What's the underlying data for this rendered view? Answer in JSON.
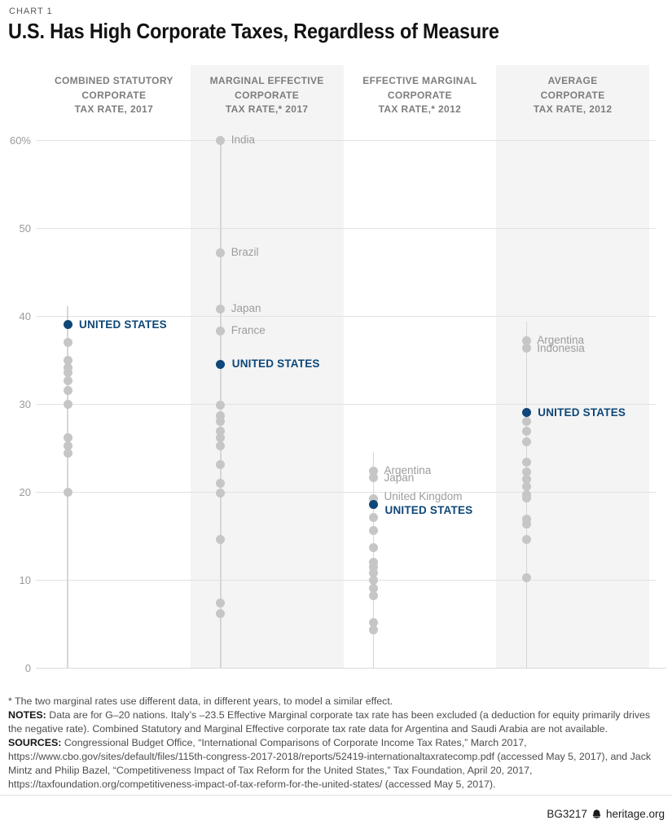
{
  "page": {
    "eyebrow": "CHART 1",
    "title": "U.S. Has High Corporate Taxes, Regardless of Measure"
  },
  "colors": {
    "accent_blue": "#0e4778",
    "dot_gray": "#c6c6c6",
    "strip_bg": "#f4f4f5",
    "gridline": "#e2e2e2",
    "label_gray": "#9d9d9d"
  },
  "chart_data": {
    "type": "scatter",
    "variant": "dot-strip-columns",
    "unit": "%",
    "ylim": [
      0,
      60
    ],
    "grid": "horizontal",
    "y_ticks": [
      {
        "label": "60%",
        "value": 60
      },
      {
        "label": "50",
        "value": 50
      },
      {
        "label": "40",
        "value": 40
      },
      {
        "label": "30",
        "value": 30
      },
      {
        "label": "20",
        "value": 20
      },
      {
        "label": "10",
        "value": 10
      },
      {
        "label": "0",
        "value": 0
      }
    ],
    "columns": [
      {
        "header_lines": [
          "COMBINED STATUTORY",
          "CORPORATE",
          "TAX RATE, 2017"
        ],
        "shaded": false,
        "highlight": {
          "label": "UNITED STATES",
          "value": 39.0
        },
        "labeled": [],
        "points": [
          37.0,
          35.0,
          34.1,
          33.6,
          32.6,
          31.5,
          30.0,
          26.2,
          25.2,
          24.4,
          20.0
        ]
      },
      {
        "header_lines": [
          "MARGINAL EFFECTIVE",
          "CORPORATE",
          "TAX RATE,* 2017"
        ],
        "shaded": true,
        "highlight": {
          "label": "UNITED STATES",
          "value": 34.5
        },
        "labeled": [
          {
            "label": "India",
            "value": 60.0
          },
          {
            "label": "Brazil",
            "value": 47.2
          },
          {
            "label": "Japan",
            "value": 40.8
          },
          {
            "label": "France",
            "value": 38.3
          }
        ],
        "points": [
          29.9,
          28.7,
          28.0,
          26.9,
          26.2,
          25.2,
          23.1,
          21.0,
          19.9,
          14.6,
          7.4,
          6.2
        ]
      },
      {
        "header_lines": [
          "EFFECTIVE MARGINAL",
          "CORPORATE",
          "TAX RATE,* 2012"
        ],
        "shaded": false,
        "highlight": {
          "label": "UNITED STATES",
          "value": 18.6,
          "label_dy": 8
        },
        "labeled": [
          {
            "label": "Argentina",
            "value": 22.4
          },
          {
            "label": "Japan",
            "value": 21.6
          },
          {
            "label": "United Kingdom",
            "value": 19.2,
            "label_dy": -3
          }
        ],
        "points": [
          17.1,
          15.6,
          13.7,
          12.0,
          11.4,
          10.8,
          10.0,
          9.0,
          8.2,
          5.1,
          4.3
        ]
      },
      {
        "header_lines": [
          "AVERAGE",
          "CORPORATE",
          "TAX RATE, 2012"
        ],
        "shaded": true,
        "highlight": {
          "label": "UNITED STATES",
          "value": 29.0
        },
        "labeled": [
          {
            "label": "Argentina",
            "value": 37.2
          },
          {
            "label": "Indonesia",
            "value": 36.3
          }
        ],
        "points": [
          28.0,
          26.9,
          25.7,
          23.4,
          22.3,
          21.4,
          20.6,
          19.7,
          19.3,
          16.9,
          16.3,
          14.6,
          10.2
        ]
      }
    ]
  },
  "footnotes": {
    "asterisk": "* The two marginal rates use different data, in different years, to model a similar effect.",
    "notes_label": "NOTES:",
    "notes_text": " Data are for G–20 nations. Italy’s –23.5 Effective Marginal corporate tax rate has been excluded (a deduction for equity primarily drives the negative rate). Combined Statutory and Marginal Effective corporate tax rate data for Argentina and Saudi Arabia are not available.",
    "sources_label": "SOURCES:",
    "sources_text": " Congressional Budget Office, “International Comparisons of Corporate Income Tax Rates,” March 2017, https://www.cbo.gov/sites/default/files/115th-congress-2017-2018/reports/52419-internationaltaxratecomp.pdf (accessed May 5, 2017), and Jack Mintz and Philip Bazel, “Competitiveness Impact of Tax Reform for the United States,” Tax Foundation, April 20, 2017, https://taxfoundation.org/competitiveness-impact-of-tax-reform-for-the-united-states/ (accessed May 5, 2017)."
  },
  "footer": {
    "doc_id": "BG3217",
    "site": "heritage.org",
    "logo": "heritage-bell-icon"
  }
}
